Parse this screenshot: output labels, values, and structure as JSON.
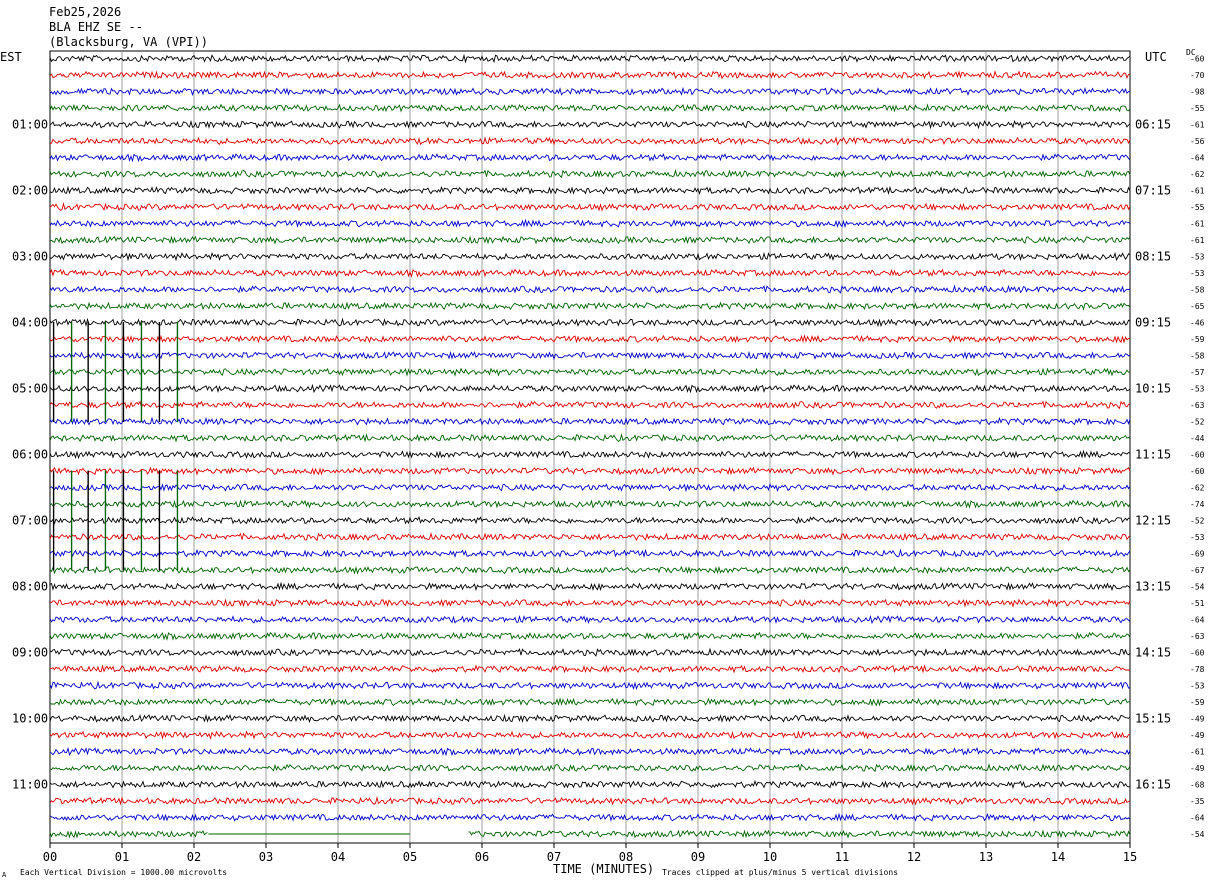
{
  "header": {
    "date": "Feb25,2026",
    "station": "BLA EHZ SE --",
    "location": "(Blacksburg, VA (VPI))"
  },
  "left_timezone": "EST",
  "right_timezone": "UTC",
  "dc_label": "DC",
  "footer": {
    "mark": "A",
    "scale_note": "Each Vertical Division = 1000.00 microvolts",
    "clip_note": "Traces clipped at plus/minus 5 vertical divisions"
  },
  "colors": {
    "trace": [
      "#000000",
      "#e00000",
      "#0000d0",
      "#006400"
    ],
    "grid": "#888888"
  },
  "chart_data": {
    "type": "line",
    "description_type": "seismogram helicorder",
    "xlabel": "TIME (MINUTES)",
    "x_range": [
      0,
      15
    ],
    "x_ticks": [
      "00",
      "01",
      "02",
      "03",
      "04",
      "05",
      "06",
      "07",
      "08",
      "09",
      "10",
      "11",
      "12",
      "13",
      "14",
      "15"
    ],
    "minutes_per_line": 15,
    "lines_count": 48,
    "left_hour_labels": [
      "01:00",
      "02:00",
      "03:00",
      "04:00",
      "05:00",
      "06:00",
      "07:00",
      "08:00",
      "09:00",
      "10:00",
      "11:00"
    ],
    "right_hour_labels": [
      "06:15",
      "07:15",
      "08:15",
      "09:15",
      "10:15",
      "11:15",
      "12:15",
      "13:15",
      "14:15",
      "15:15",
      "16:15"
    ],
    "dc_offsets": [
      -60,
      -70,
      -98,
      -55,
      -61,
      -56,
      -64,
      -62,
      -61,
      -55,
      -61,
      -61,
      -53,
      -53,
      -58,
      -65,
      -46,
      -59,
      -58,
      -57,
      -53,
      -63,
      -52,
      -44,
      -60,
      -60,
      -62,
      -74,
      -52,
      -53,
      -69,
      -67,
      -54,
      -51,
      -64,
      -63,
      -60,
      -78,
      -53,
      -59,
      -49,
      -49,
      -61,
      -49,
      -68,
      -35,
      -64,
      -54
    ],
    "spikes_minutes": [
      0.05,
      0.3,
      0.53,
      0.77,
      1.02,
      1.27,
      1.52,
      1.77
    ],
    "spike_lines": [
      19,
      28
    ],
    "data_gap_last_line_minutes": [
      2.2,
      5.8
    ]
  }
}
